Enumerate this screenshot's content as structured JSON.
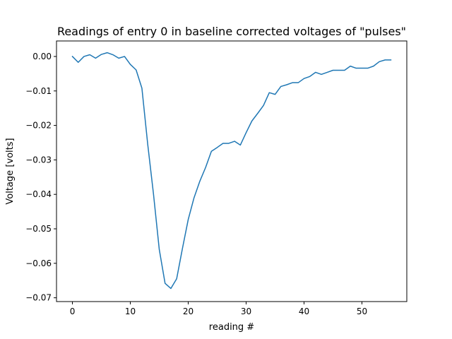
{
  "chart_data": {
    "type": "line",
    "title": "Readings of entry 0 in baseline corrected voltages of \"pulses\"",
    "xlabel": "reading #",
    "ylabel": "Voltage [volts]",
    "xlim": [
      -2.75,
      57.75
    ],
    "ylim": [
      -0.0711,
      0.0045
    ],
    "xticks": [
      0,
      10,
      20,
      30,
      40,
      50
    ],
    "xtick_labels": [
      "0",
      "10",
      "20",
      "30",
      "40",
      "50"
    ],
    "yticks": [
      0.0,
      -0.01,
      -0.02,
      -0.03,
      -0.04,
      -0.05,
      -0.06,
      -0.07
    ],
    "ytick_labels": [
      "0.00",
      "−0.01",
      "−0.02",
      "−0.03",
      "−0.04",
      "−0.05",
      "−0.06",
      "−0.07"
    ],
    "grid": false,
    "series": [
      {
        "color": "#1f77b4",
        "x": [
          0,
          1,
          2,
          3,
          4,
          5,
          6,
          7,
          8,
          9,
          10,
          11,
          12,
          13,
          14,
          15,
          16,
          17,
          18,
          19,
          20,
          21,
          22,
          23,
          24,
          25,
          26,
          27,
          28,
          29,
          30,
          31,
          32,
          33,
          34,
          35,
          36,
          37,
          38,
          39,
          40,
          41,
          42,
          43,
          44,
          45,
          46,
          47,
          48,
          49,
          50,
          51,
          52,
          53,
          54,
          55
        ],
        "y": [
          0.0,
          -0.0017,
          0.0,
          0.0005,
          -0.0005,
          0.0006,
          0.0011,
          0.0005,
          -0.0005,
          0.0,
          -0.0023,
          -0.0039,
          -0.0092,
          -0.0254,
          -0.0399,
          -0.056,
          -0.0658,
          -0.0673,
          -0.0645,
          -0.0557,
          -0.0473,
          -0.041,
          -0.0362,
          -0.0322,
          -0.0275,
          -0.0264,
          -0.0252,
          -0.0252,
          -0.0246,
          -0.0257,
          -0.0221,
          -0.0187,
          -0.0165,
          -0.0142,
          -0.0105,
          -0.011,
          -0.0087,
          -0.0082,
          -0.0076,
          -0.0076,
          -0.0064,
          -0.0058,
          -0.0046,
          -0.0052,
          -0.0046,
          -0.004,
          -0.004,
          -0.004,
          -0.0028,
          -0.0034,
          -0.0034,
          -0.0034,
          -0.0028,
          -0.0015,
          -0.001,
          -0.001
        ]
      }
    ]
  }
}
